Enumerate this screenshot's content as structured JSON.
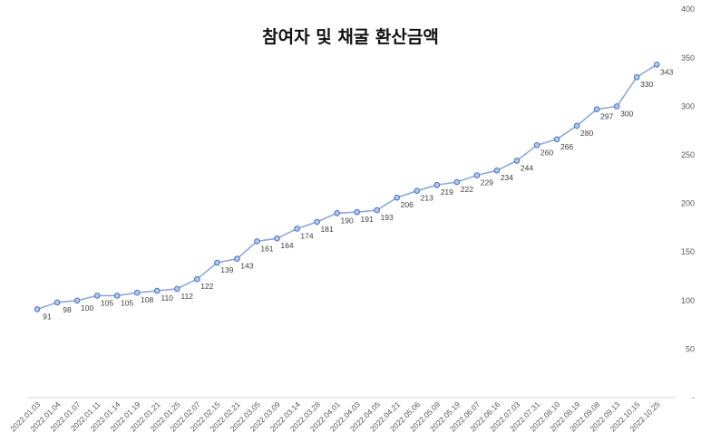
{
  "chart_data": {
    "type": "line",
    "title": "참여자 및 채굴 환산금액",
    "xlabel": "",
    "ylabel": "",
    "ylim": [
      0,
      400
    ],
    "yticks": [
      0,
      50,
      100,
      150,
      200,
      250,
      300,
      350,
      400
    ],
    "ytick_labels": [
      "-",
      "50",
      "100",
      "150",
      "200",
      "250",
      "300",
      "350",
      "400"
    ],
    "y_axis_position": "right",
    "grid": false,
    "legend": "none",
    "categories": [
      "2022.01.03",
      "2022.01.04",
      "2022.01.07",
      "2022.01.11",
      "2022.01.14",
      "2022.01.19",
      "2022.01.21",
      "2022.01.25",
      "2022.02.07",
      "2022.02.15",
      "2022.02.21",
      "2022.03.05",
      "2022.03.09",
      "2022.03.14",
      "2022.03.28",
      "2022.04.01",
      "2022.04.03",
      "2022.04.05",
      "2022.04.21",
      "2022.05.06",
      "2022.05.09",
      "2022.05.19",
      "2022.06.07",
      "2022.06.16",
      "2022.07.03",
      "2022.07.31",
      "2022.08.10",
      "2022.08.19",
      "2022.09.08",
      "2022.09.13",
      "2022.10.15",
      "2022.10.25"
    ],
    "values": [
      91,
      98,
      100,
      105,
      105,
      108,
      110,
      112,
      122,
      139,
      143,
      161,
      164,
      174,
      181,
      190,
      191,
      193,
      206,
      213,
      219,
      222,
      229,
      234,
      244,
      260,
      266,
      280,
      297,
      300,
      330,
      343
    ],
    "data_labels": [
      "91",
      "98",
      "100",
      "105",
      "105",
      "108",
      "110",
      "112",
      "122",
      "139",
      "143",
      "161",
      "164",
      "174",
      "181",
      "190",
      "191",
      "193",
      "206",
      "213",
      "219",
      "222",
      "229",
      "234",
      "244",
      "260",
      "266",
      "280",
      "297",
      "300",
      "330",
      "343"
    ],
    "line_color": "#8EA9DB",
    "marker_fill": "#B4C7E7",
    "marker_stroke": "#4472C4"
  }
}
